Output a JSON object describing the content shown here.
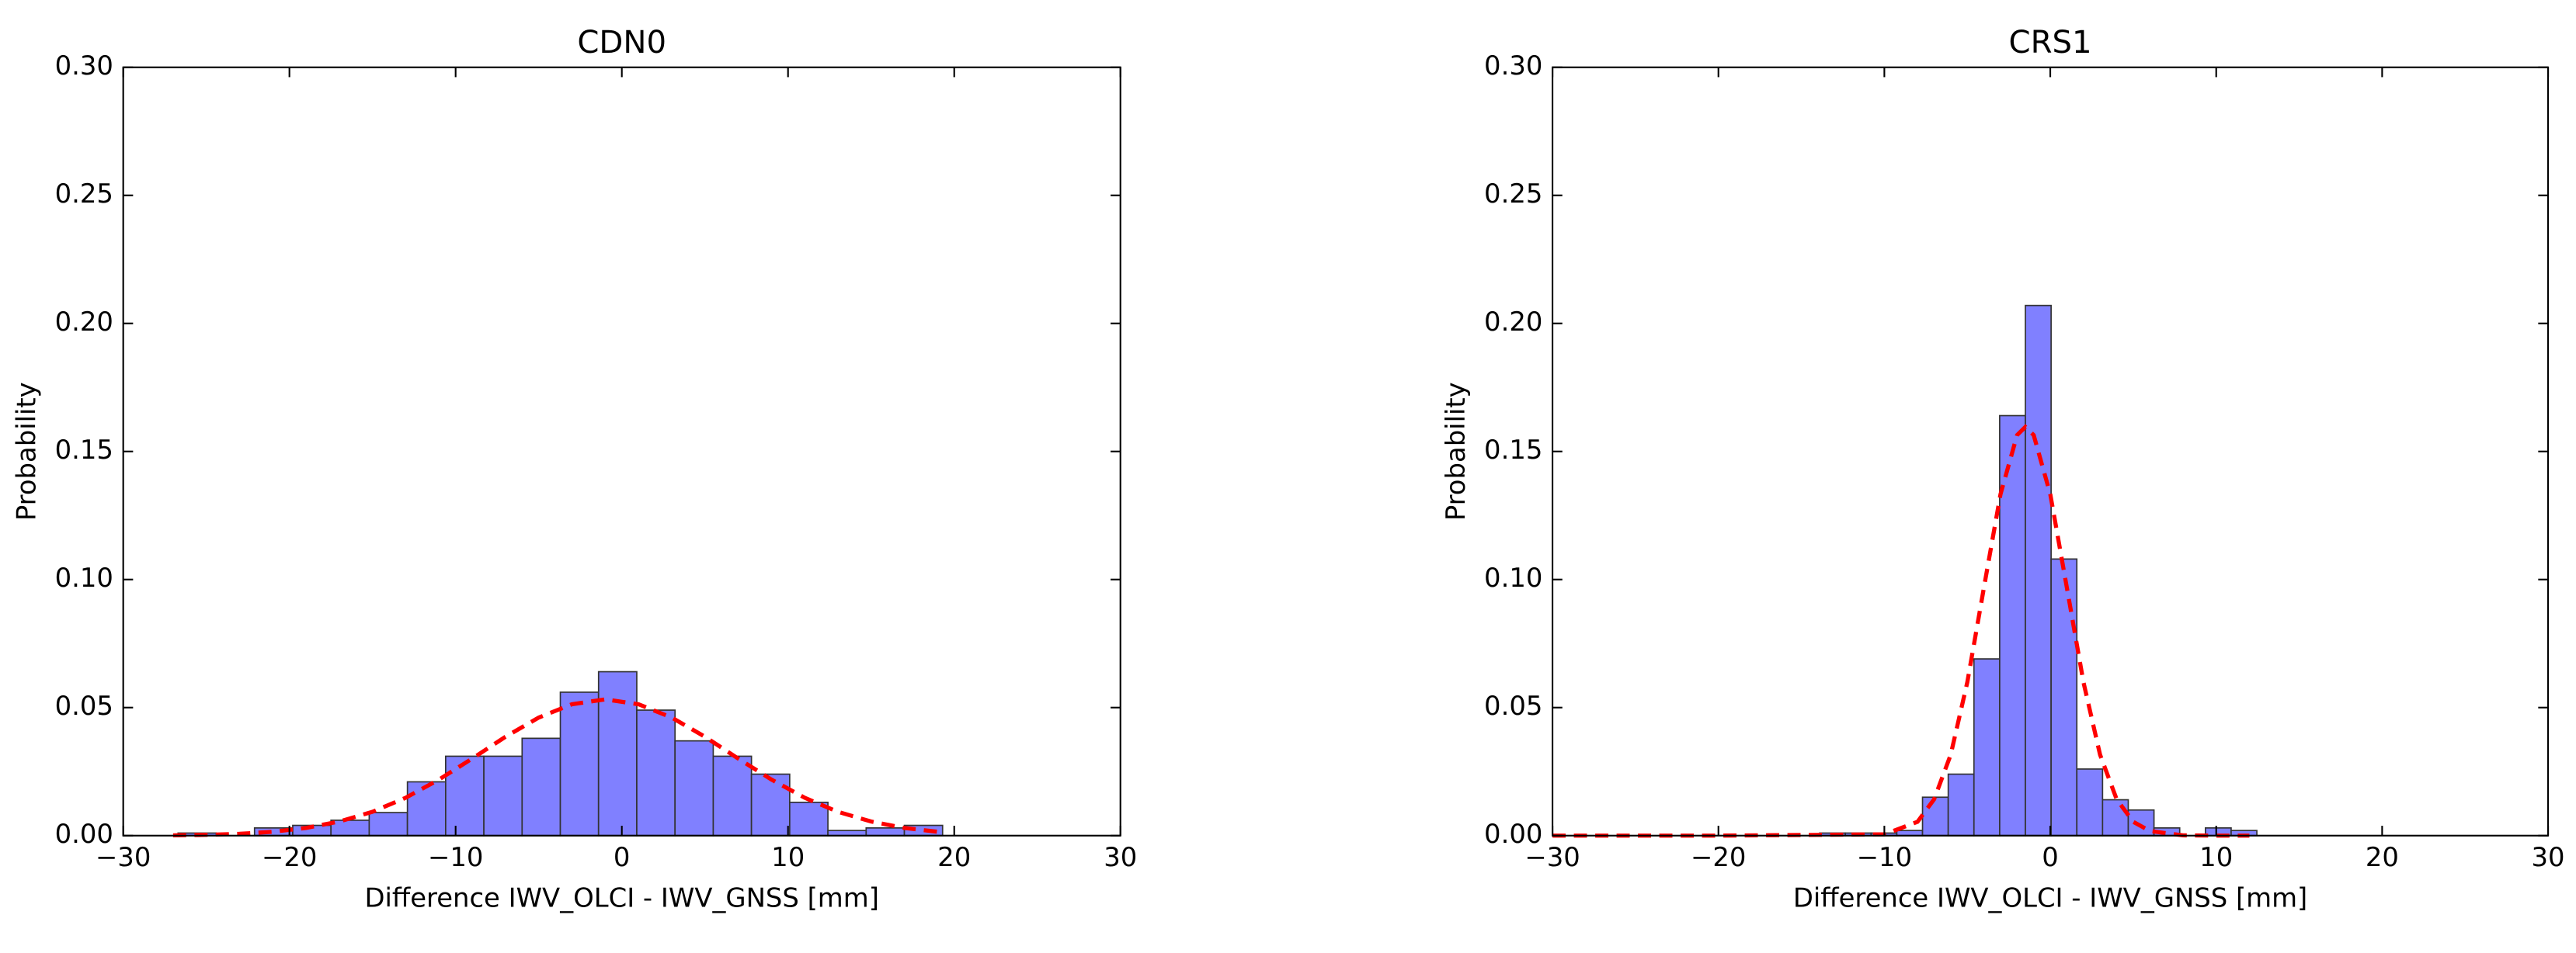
{
  "chart_data": [
    {
      "type": "histogram",
      "title": "CDN0",
      "xlabel": "Difference IWV_OLCI - IWV_GNSS [mm]",
      "ylabel": "Probability",
      "bins": [
        -26.7,
        -24.4,
        -22.1,
        -19.8,
        -17.5,
        -15.2,
        -12.9,
        -10.6,
        -8.3,
        -6.0,
        -3.7,
        -1.4,
        0.9,
        3.2,
        5.5,
        7.8,
        10.1,
        12.4,
        14.7,
        17.0,
        19.3
      ],
      "values": [
        0.001,
        0,
        0.003,
        0.004,
        0.006,
        0.009,
        0.021,
        0.031,
        0.031,
        0.038,
        0.056,
        0.064,
        0.049,
        0.037,
        0.031,
        0.024,
        0.013,
        0.002,
        0.003,
        0.004
      ],
      "color": "#8080ff",
      "fit": {
        "x": [
          -27,
          -25,
          -23,
          -21,
          -19,
          -17,
          -15,
          -13,
          -11,
          -9,
          -7,
          -5,
          -3,
          -1,
          1,
          3,
          5,
          7,
          9,
          11,
          13,
          15,
          17,
          19
        ],
        "y": [
          0.0001,
          0.0003,
          0.0007,
          0.0015,
          0.003,
          0.0055,
          0.0093,
          0.0148,
          0.0219,
          0.0301,
          0.0386,
          0.0461,
          0.0513,
          0.0532,
          0.0513,
          0.0461,
          0.0386,
          0.0301,
          0.0219,
          0.0148,
          0.0093,
          0.0055,
          0.003,
          0.0015
        ],
        "color": "#ff0000",
        "style": "dashed"
      },
      "xlim": [
        -30,
        30
      ],
      "xticks": [
        {
          "value": -30,
          "label": "−30"
        },
        {
          "value": -20,
          "label": "−20"
        },
        {
          "value": -10,
          "label": "−10"
        },
        0,
        10,
        20,
        30
      ],
      "ylim": [
        0,
        0.3
      ],
      "yticks": [
        {
          "value": 0,
          "label": "0.00"
        },
        {
          "value": 0.05,
          "label": "0.05"
        },
        {
          "value": 0.1,
          "label": "0.10"
        },
        {
          "value": 0.15,
          "label": "0.15"
        },
        {
          "value": 0.2,
          "label": "0.20"
        },
        {
          "value": 0.25,
          "label": "0.25"
        },
        {
          "value": 0.3,
          "label": "0.30"
        }
      ]
    },
    {
      "type": "histogram",
      "title": "CRS1",
      "xlabel": "Difference IWV_OLCI - IWV_GNSS [mm]",
      "ylabel": "Probability",
      "bins": [
        -13.9,
        -12.35,
        -10.8,
        -9.25,
        -7.7,
        -6.15,
        -4.6,
        -3.05,
        -1.5,
        0.05,
        1.6,
        3.15,
        4.7,
        6.25,
        7.8,
        9.35,
        10.9,
        12.45
      ],
      "values": [
        0.001,
        0.001,
        0.001,
        0.002,
        0.015,
        0.024,
        0.069,
        0.164,
        0.207,
        0.108,
        0.026,
        0.014,
        0.01,
        0.003,
        0,
        0.003,
        0.002
      ],
      "color": "#8080ff",
      "fit": {
        "x": [
          -30,
          -20,
          -10,
          -8,
          -7,
          -6,
          -5,
          -4,
          -3,
          -2,
          -1.5,
          -1,
          0,
          1,
          2,
          3,
          4,
          5,
          6,
          8,
          10,
          12
        ],
        "y": [
          0,
          0,
          0.0005,
          0.0054,
          0.0142,
          0.0316,
          0.0599,
          0.0968,
          0.1333,
          0.1564,
          0.1596,
          0.1564,
          0.1333,
          0.0968,
          0.0599,
          0.0316,
          0.0142,
          0.0054,
          0.0018,
          0.0001,
          0,
          0
        ],
        "color": "#ff0000",
        "style": "dashed"
      },
      "xlim": [
        -30,
        30
      ],
      "xticks": [
        {
          "value": -30,
          "label": "−30"
        },
        {
          "value": -20,
          "label": "−20"
        },
        {
          "value": -10,
          "label": "−10"
        },
        0,
        10,
        20,
        30
      ],
      "ylim": [
        0,
        0.3
      ],
      "yticks": [
        {
          "value": 0,
          "label": "0.00"
        },
        {
          "value": 0.05,
          "label": "0.05"
        },
        {
          "value": 0.1,
          "label": "0.10"
        },
        {
          "value": 0.15,
          "label": "0.15"
        },
        {
          "value": 0.2,
          "label": "0.20"
        },
        {
          "value": 0.25,
          "label": "0.25"
        },
        {
          "value": 0.3,
          "label": "0.30"
        }
      ]
    }
  ]
}
